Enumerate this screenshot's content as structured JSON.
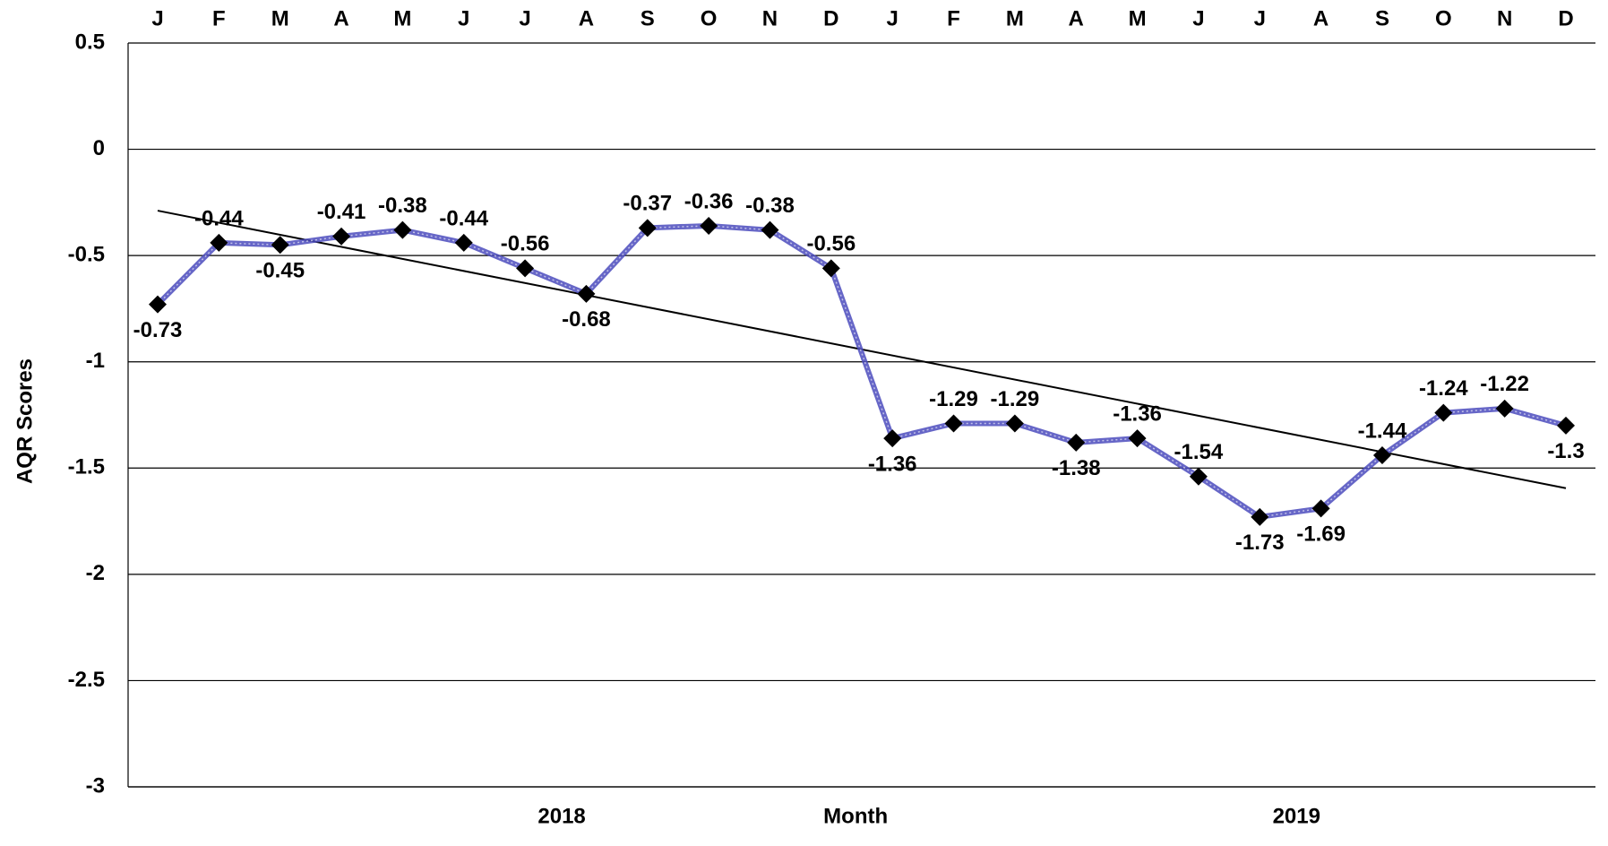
{
  "chart_data": {
    "type": "line",
    "y_axis_label": "AQR Scores",
    "x_axis_label": "Month",
    "year_labels": [
      "2018",
      "2019"
    ],
    "categories": [
      "J",
      "F",
      "M",
      "A",
      "M",
      "J",
      "J",
      "A",
      "S",
      "O",
      "N",
      "D",
      "J",
      "F",
      "M",
      "A",
      "M",
      "J",
      "J",
      "A",
      "S",
      "O",
      "N",
      "D"
    ],
    "values": [
      -0.73,
      -0.44,
      -0.45,
      -0.41,
      -0.38,
      -0.44,
      -0.56,
      -0.68,
      -0.37,
      -0.36,
      -0.38,
      -0.56,
      -1.36,
      -1.29,
      -1.29,
      -1.38,
      -1.36,
      -1.54,
      -1.73,
      -1.69,
      -1.44,
      -1.24,
      -1.22,
      -1.3
    ],
    "color": "#4b4bbd",
    "marker_color": "#000000",
    "trendline": true,
    "ylim": [
      -3,
      0.5
    ],
    "yticks": [
      -3,
      -2.5,
      -2,
      -1.5,
      -1,
      -0.5,
      0,
      0.5
    ],
    "grid": true
  }
}
